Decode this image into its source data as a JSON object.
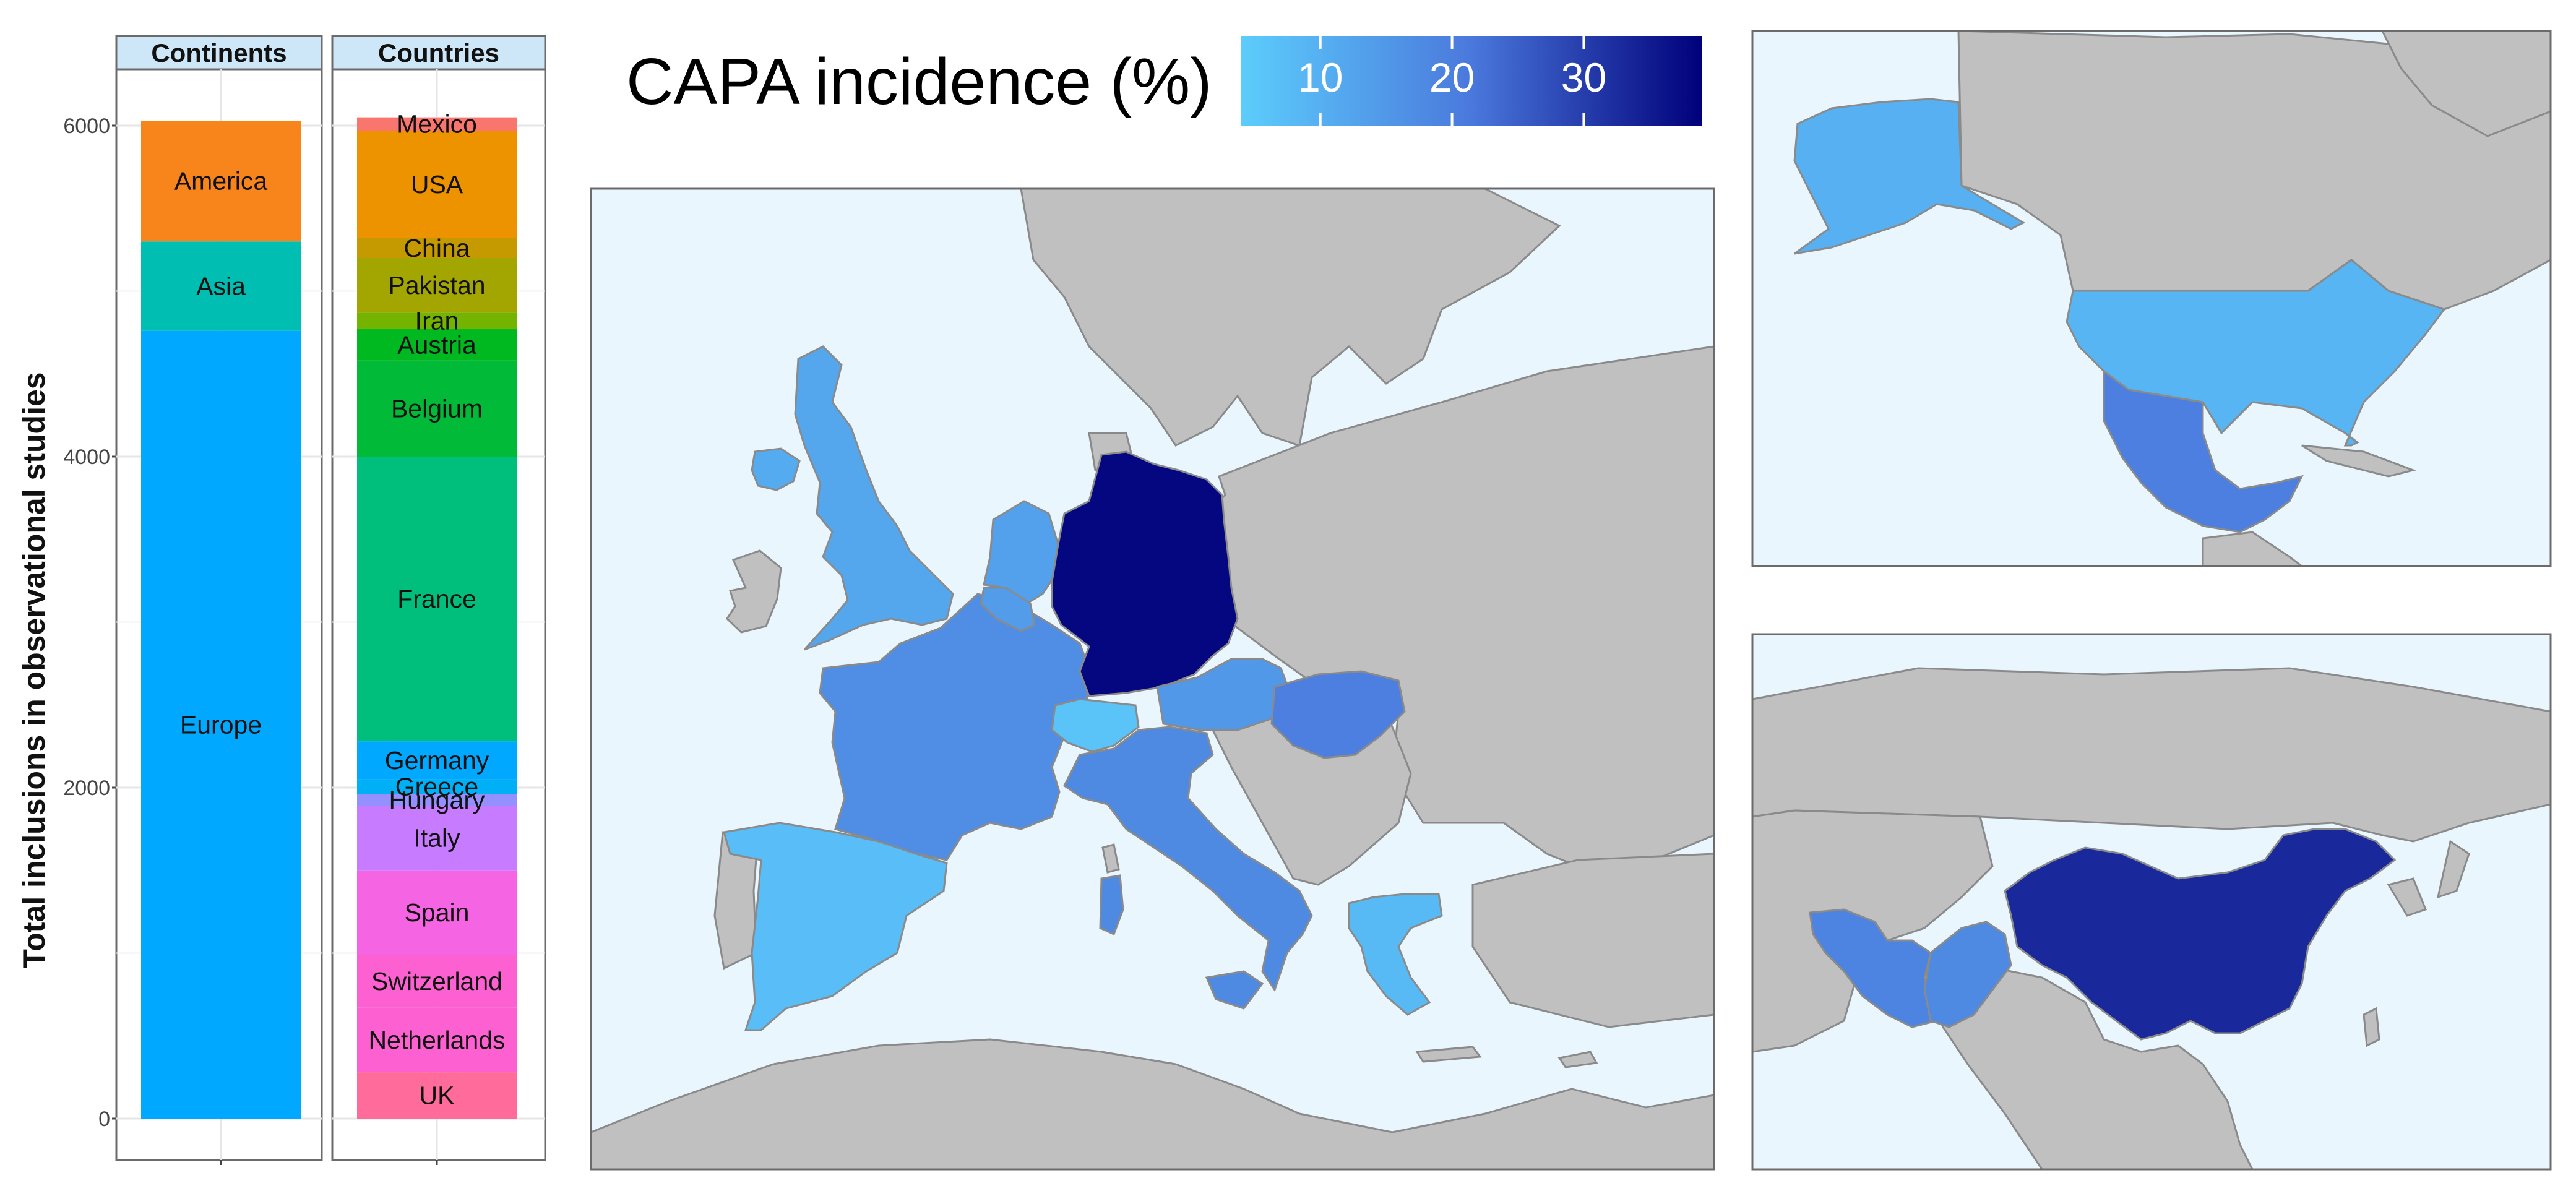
{
  "colors": {
    "ocean": "#eaf6fd",
    "land": "#c0c0c0",
    "land_stroke": "#8a8a8a",
    "facet_strip": "#cde6f8",
    "panel_border": "#6b6b6b",
    "gradient_low": "#5ccdfc",
    "gradient_mid": "#4a78dc",
    "gradient_high": "#00007a"
  },
  "legend": {
    "title": "CAPA incidence (%)",
    "ticks": [
      "10",
      "20",
      "30"
    ],
    "tick_values": [
      10,
      20,
      30
    ],
    "range": [
      4,
      39
    ]
  },
  "chart_data": [
    {
      "type": "bar",
      "subtype": "stacked-faceted",
      "ylabel": "Total inclusions in observational studies",
      "ylim": [
        0,
        6000
      ],
      "yticks": [
        0,
        2000,
        4000,
        6000
      ],
      "ytick_labels": [
        "0",
        "2000",
        "4000",
        "6000"
      ],
      "grid": true,
      "facets": [
        {
          "name": "Continents",
          "segments": [
            {
              "label": "Europe",
              "value": 4760,
              "color": "#00a9ff"
            },
            {
              "label": "Asia",
              "value": 540,
              "color": "#00bfb2"
            },
            {
              "label": "America",
              "value": 730,
              "color": "#f8841c"
            }
          ]
        },
        {
          "name": "Countries",
          "segments": [
            {
              "label": "UK",
              "value": 280,
              "color": "#ff6b9a"
            },
            {
              "label": "Netherlands",
              "value": 390,
              "color": "#fd61d1"
            },
            {
              "label": "Switzerland",
              "value": 320,
              "color": "#fd61d1"
            },
            {
              "label": "Spain",
              "value": 510,
              "color": "#f564e3"
            },
            {
              "label": "Italy",
              "value": 390,
              "color": "#c77cff"
            },
            {
              "label": "Hungary",
              "value": 70,
              "color": "#9590ff"
            },
            {
              "label": "Greece",
              "value": 90,
              "color": "#00b0f6"
            },
            {
              "label": "Germany",
              "value": 230,
              "color": "#00a9ff"
            },
            {
              "label": "France",
              "value": 1720,
              "color": "#00bf7d"
            },
            {
              "label": "Belgium",
              "value": 580,
              "color": "#00ba38"
            },
            {
              "label": "Austria",
              "value": 190,
              "color": "#00b81f"
            },
            {
              "label": "Iran",
              "value": 100,
              "color": "#74b300"
            },
            {
              "label": "Pakistan",
              "value": 330,
              "color": "#a3a500"
            },
            {
              "label": "China",
              "value": 120,
              "color": "#c49a00"
            },
            {
              "label": "USA",
              "value": 650,
              "color": "#ee9300"
            },
            {
              "label": "Mexico",
              "value": 80,
              "color": "#f8766d"
            }
          ]
        }
      ]
    },
    {
      "type": "heatmap",
      "subtype": "choropleth",
      "metric": "CAPA incidence (%)",
      "regions": [
        {
          "name": "Germany",
          "value": 38
        },
        {
          "name": "China",
          "value": 33
        },
        {
          "name": "Hungary",
          "value": 20
        },
        {
          "name": "Mexico",
          "value": 20
        },
        {
          "name": "Iran",
          "value": 19
        },
        {
          "name": "Pakistan",
          "value": 18
        },
        {
          "name": "Italy",
          "value": 18
        },
        {
          "name": "France",
          "value": 17
        },
        {
          "name": "Austria",
          "value": 15
        },
        {
          "name": "Belgium",
          "value": 14
        },
        {
          "name": "Netherlands",
          "value": 13
        },
        {
          "name": "UK",
          "value": 12
        },
        {
          "name": "Ireland",
          "value": 11
        },
        {
          "name": "Alaska",
          "value": 10
        },
        {
          "name": "USA",
          "value": 9
        },
        {
          "name": "Greece",
          "value": 8
        },
        {
          "name": "Spain",
          "value": 7
        },
        {
          "name": "Switzerland",
          "value": 6
        }
      ]
    }
  ]
}
